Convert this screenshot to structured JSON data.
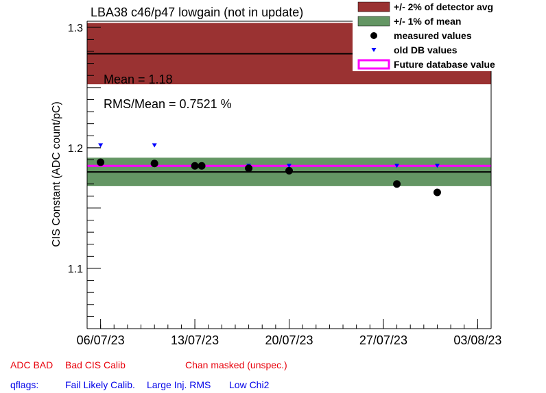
{
  "chart_data": {
    "type": "scatter",
    "title": "LBA38 c46/p47 lowgain (not in update)",
    "ylabel": "CIS Constant (ADC count/pC)",
    "xlabel": "",
    "x_ticks": [
      "06/07/23",
      "13/07/23",
      "20/07/23",
      "27/07/23",
      "03/08/23"
    ],
    "y_ticks": [
      "1.1",
      "1.2",
      "1.3"
    ],
    "xlim": [
      "2023-07-05",
      "2023-08-04"
    ],
    "ylim": [
      1.05,
      1.305
    ],
    "grid": false,
    "legend_position": "top-right",
    "detector_avg": 1.278,
    "detector_band": [
      1.2527,
      1.3036
    ],
    "mean": 1.18,
    "mean_band": [
      1.1682,
      1.1918
    ],
    "future_db_value": 1.185,
    "series": [
      {
        "name": "measured values",
        "x": [
          "2023-07-06",
          "2023-07-10",
          "2023-07-13",
          "2023-07-13",
          "2023-07-17",
          "2023-07-20",
          "2023-07-28",
          "2023-07-31"
        ],
        "y": [
          1.188,
          1.187,
          1.185,
          1.185,
          1.183,
          1.181,
          1.17,
          1.163
        ]
      },
      {
        "name": "old DB values",
        "x": [
          "2023-07-06",
          "2023-07-10",
          "2023-07-17",
          "2023-07-20",
          "2023-07-28",
          "2023-07-31"
        ],
        "y": [
          1.202,
          1.202,
          1.185,
          1.185,
          1.185,
          1.185
        ]
      }
    ],
    "annotations": {
      "mean_text": "Mean = 1.18",
      "rms_text": "RMS/Mean = 0.7521 %"
    },
    "legend": [
      {
        "label": "+/- 2% of detector avg",
        "kind": "box",
        "color": "#9a3232"
      },
      {
        "label": "+/- 1% of mean",
        "kind": "box",
        "color": "#649664"
      },
      {
        "label": "measured values",
        "kind": "dot",
        "color": "#000000"
      },
      {
        "label": "old DB values",
        "kind": "triangle",
        "color": "#0000ff"
      },
      {
        "label": "Future database value",
        "kind": "outline",
        "color": "#ff00ff"
      }
    ],
    "colors": {
      "detector_band": "#9a3232",
      "mean_band": "#649664",
      "future_line": "#ff00ff",
      "old_db": "#0000ff"
    }
  },
  "flags": {
    "row1": [
      "ADC BAD",
      "Bad CIS Calib",
      "Chan masked (unspec.)"
    ],
    "row2_label": "qflags:",
    "row2": [
      "Fail Likely Calib.",
      "Large Inj. RMS",
      "Low Chi2"
    ]
  }
}
